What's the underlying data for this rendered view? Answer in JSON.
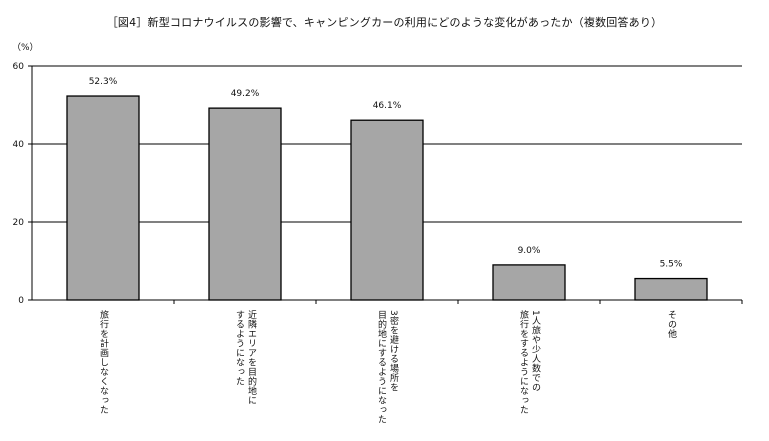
{
  "chart_data": {
    "type": "bar",
    "title": "［図4］新型コロナウイルスの影響で、キャンピングカーの利用にどのような変化があったか（複数回答あり）",
    "ylabel_unit": "（%）",
    "ylim": [
      0,
      60
    ],
    "yticks": [
      0,
      20,
      40,
      60
    ],
    "grid": true,
    "categories": [
      "旅行を計画しなくなった",
      "近隣エリアを目的地に\nするようになった",
      "3密を避ける場所を\n目的地にするようになった",
      "1人旅や少人数での\n旅行をするようになった",
      "その他"
    ],
    "values": [
      52.3,
      49.2,
      46.1,
      9.0,
      5.5
    ],
    "value_labels": [
      "52.3%",
      "49.2%",
      "46.1%",
      "9.0%",
      "5.5%"
    ],
    "bar_color": "#a6a6a6"
  }
}
